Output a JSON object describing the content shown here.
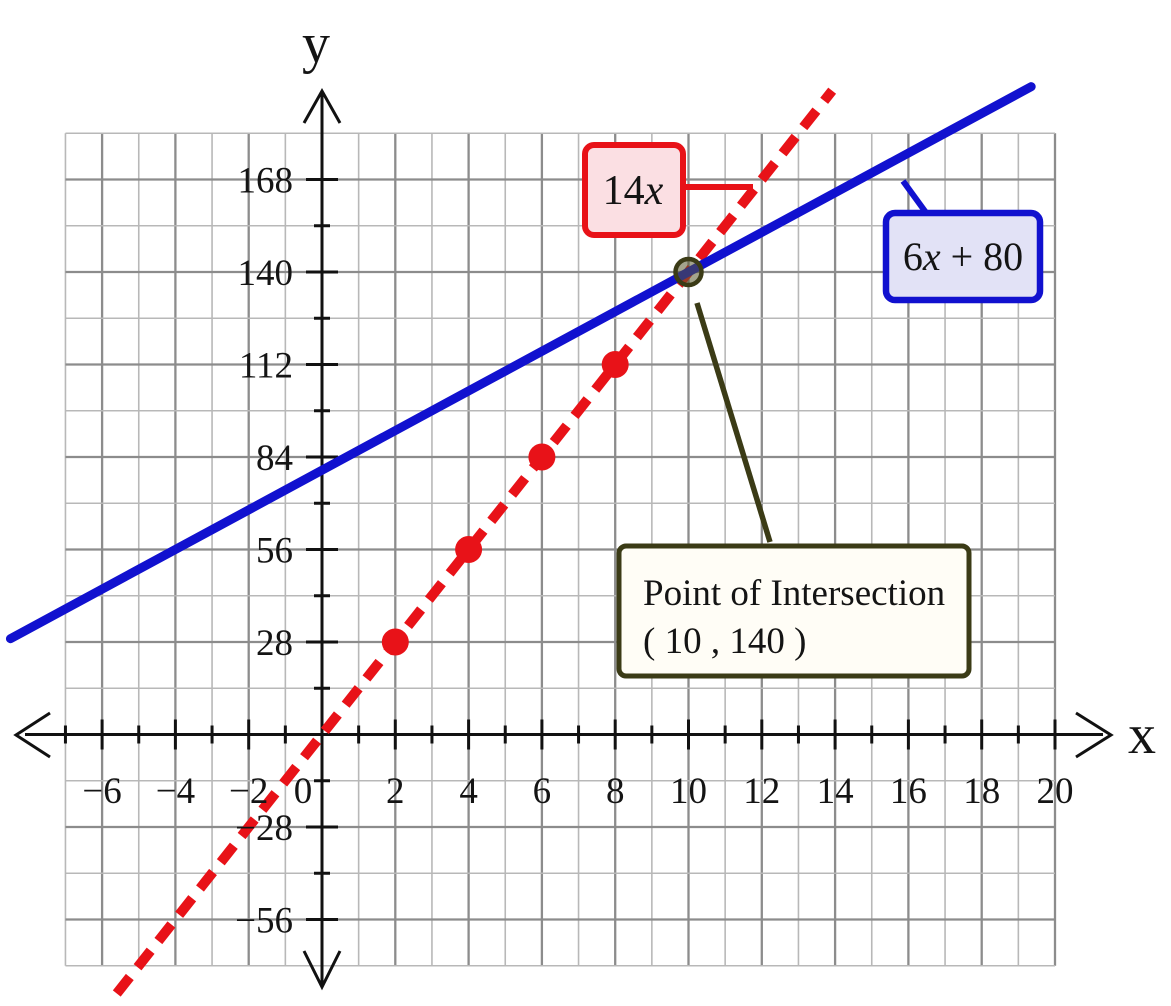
{
  "chart_data": {
    "type": "line",
    "title": "",
    "xlabel": "x",
    "ylabel": "y",
    "x_range": [
      -7,
      20
    ],
    "y_range": [
      -70,
      182
    ],
    "x_grid_step": 1,
    "y_grid_step": 14,
    "x_major_step": 2,
    "y_major_step": 28,
    "x_tick_labels": [
      -6,
      -4,
      -2,
      0,
      2,
      4,
      6,
      8,
      10,
      12,
      14,
      16,
      18,
      20
    ],
    "y_tick_labels": [
      168,
      140,
      112,
      84,
      56,
      28,
      -28,
      -56
    ],
    "grid": true,
    "legend_position": "floating-callout-boxes",
    "series": [
      {
        "name": "14x",
        "equation": "y = 14x",
        "slope": 14,
        "intercept": 0,
        "style": "dashed",
        "color": "#e81218",
        "x_start": -5.6,
        "x_end": 13.92,
        "marker_points": [
          {
            "x": 2,
            "y": 28
          },
          {
            "x": 4,
            "y": 56
          },
          {
            "x": 6,
            "y": 84
          },
          {
            "x": 8,
            "y": 112
          }
        ],
        "label_parts": [
          {
            "text": "14",
            "italic": false
          },
          {
            "text": "x",
            "italic": true
          }
        ],
        "label_box_fill": "#fbdfe3"
      },
      {
        "name": "6x + 80",
        "equation": "y = 6x + 80",
        "slope": 6,
        "intercept": 80,
        "style": "solid",
        "color": "#1111cf",
        "x_start": -8.5,
        "x_end": 19.35,
        "marker_points": [],
        "label_parts": [
          {
            "text": "6",
            "italic": false
          },
          {
            "text": "x",
            "italic": true
          },
          {
            "text": " + 80",
            "italic": false
          }
        ],
        "label_box_fill": "#e2e2f6"
      }
    ],
    "intersection": {
      "x": 10,
      "y": 140,
      "label_line1": "Point of Intersection",
      "label_line2": "( 10 , 140 )",
      "callout_fill": "#fffdf6",
      "callout_color": "#3b3b16"
    },
    "colors": {
      "axis": "#111111",
      "grid_major": "#8c8c8c",
      "grid_minor": "#b8b8b8",
      "red": "#e81218",
      "pink_fill": "#fbdfe3",
      "blue": "#1111cf",
      "lavender_fill": "#e2e2f6",
      "olive": "#3b3b16",
      "callout_fill": "#fffdf6"
    }
  }
}
